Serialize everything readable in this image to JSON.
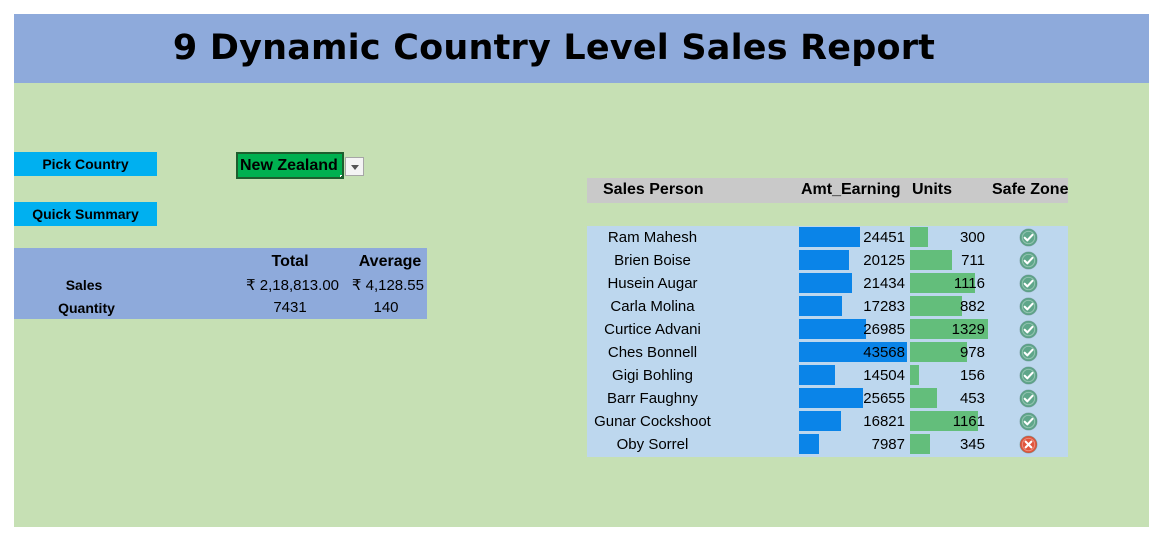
{
  "report": {
    "title": "9 Dynamic Country Level Sales Report"
  },
  "controls": {
    "pick_country_label": "Pick Country",
    "selected_country": "New Zealand",
    "quick_summary_label": "Quick Summary"
  },
  "summary": {
    "col_total": "Total",
    "col_average": "Average",
    "rows": [
      {
        "label": "Sales",
        "total": "₹ 2,18,813.00",
        "average": "₹ 4,128.55"
      },
      {
        "label": "Quantity",
        "total": "7431",
        "average": "140"
      }
    ]
  },
  "table": {
    "headers": {
      "person": "Sales Person",
      "amount": "Amt_Earning",
      "units": "Units",
      "safe_zone": "Safe Zone"
    },
    "scales": {
      "amount_max": 43568,
      "units_max": 1329
    },
    "colors": {
      "amount_bar": "#0a84e8",
      "units_bar": "#63be7b",
      "safe_ok": "#5fa68a",
      "safe_bad": "#e0553c"
    },
    "rows": [
      {
        "name": "Ram Mahesh",
        "amount": 24451,
        "units": 300,
        "safe": "check-icon"
      },
      {
        "name": "Brien Boise",
        "amount": 20125,
        "units": 711,
        "safe": "check-icon"
      },
      {
        "name": "Husein Augar",
        "amount": 21434,
        "units": 1116,
        "safe": "check-icon"
      },
      {
        "name": "Carla Molina",
        "amount": 17283,
        "units": 882,
        "safe": "check-icon"
      },
      {
        "name": "Curtice Advani",
        "amount": 26985,
        "units": 1329,
        "safe": "check-icon"
      },
      {
        "name": "Ches Bonnell",
        "amount": 43568,
        "units": 978,
        "safe": "check-icon"
      },
      {
        "name": "Gigi Bohling",
        "amount": 14504,
        "units": 156,
        "safe": "check-icon"
      },
      {
        "name": "Barr Faughny",
        "amount": 25655,
        "units": 453,
        "safe": "check-icon"
      },
      {
        "name": "Gunar Cockshoot",
        "amount": 16821,
        "units": 1161,
        "safe": "check-icon"
      },
      {
        "name": "Oby Sorrel",
        "amount": 7987,
        "units": 345,
        "safe": "cross-icon"
      }
    ]
  }
}
